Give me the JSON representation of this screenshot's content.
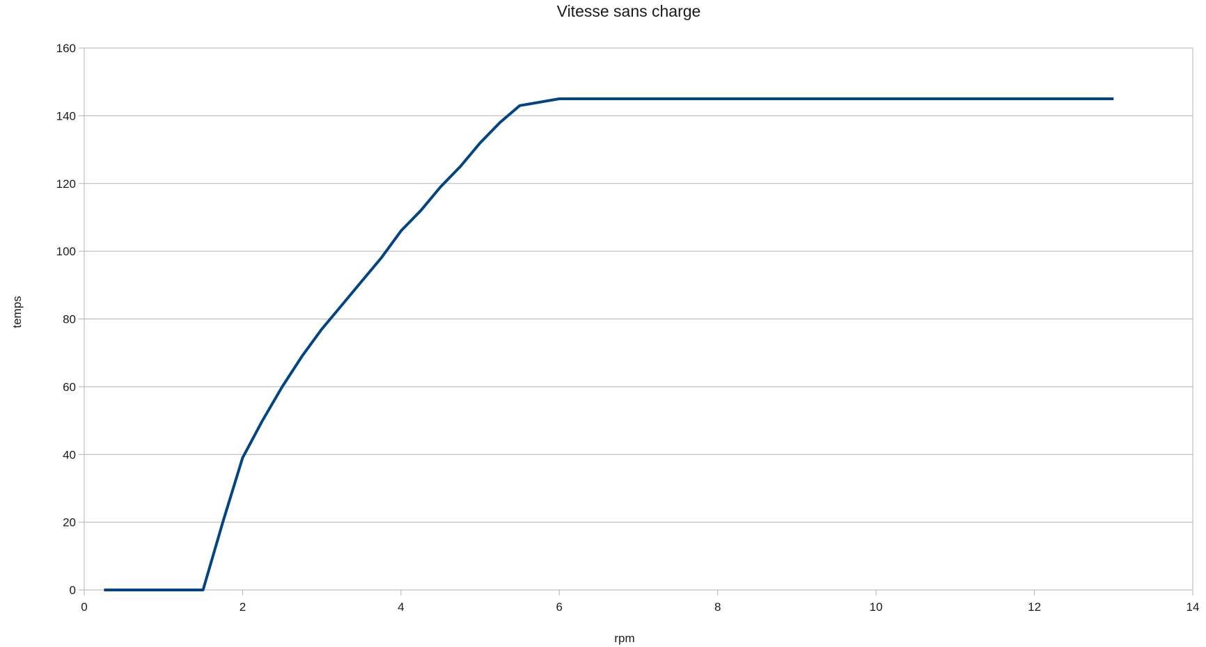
{
  "chart_data": {
    "type": "line",
    "title": "Vitesse sans charge",
    "xlabel": "rpm",
    "ylabel": "temps",
    "xlim": [
      0,
      14
    ],
    "ylim": [
      0,
      160
    ],
    "xticks": [
      0,
      2,
      4,
      6,
      8,
      10,
      12,
      14
    ],
    "yticks": [
      0,
      20,
      40,
      60,
      80,
      100,
      120,
      140,
      160
    ],
    "grid": true,
    "line_color": "#004586",
    "series": [
      {
        "x": [
          0.25,
          0.5,
          0.75,
          1,
          1.25,
          1.5,
          1.75,
          2,
          2.25,
          2.5,
          2.75,
          3,
          3.25,
          3.5,
          3.75,
          4,
          4.25,
          4.5,
          4.75,
          5,
          5.25,
          5.5,
          6,
          7,
          8,
          9,
          10,
          11,
          12,
          13
        ],
        "y": [
          0,
          0,
          0,
          0,
          0,
          0,
          20,
          39,
          50,
          60,
          69,
          77,
          84,
          91,
          98,
          106,
          112,
          119,
          125,
          132,
          138,
          143,
          145,
          145,
          145,
          145,
          145,
          145,
          145,
          145
        ]
      }
    ]
  }
}
